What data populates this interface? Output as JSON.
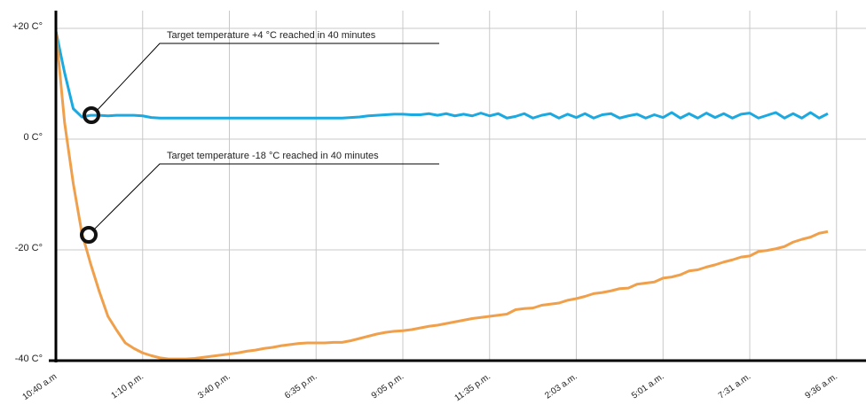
{
  "chart_data": {
    "type": "line",
    "annotations": [
      "Target temperature +4 °C reached in 40 minutes",
      "Target temperature -18 °C reached in 40 minutes"
    ],
    "categories": [
      "10:40 a.m",
      null,
      null,
      null,
      null,
      null,
      null,
      null,
      null,
      null,
      "1:10 p.m.",
      null,
      null,
      null,
      null,
      null,
      null,
      null,
      null,
      null,
      "3:40 p.m.",
      null,
      null,
      null,
      null,
      null,
      null,
      null,
      null,
      null,
      "6:35 p.m.",
      null,
      null,
      null,
      null,
      null,
      null,
      null,
      null,
      null,
      "9:05 p.m.",
      null,
      null,
      null,
      null,
      null,
      null,
      null,
      null,
      null,
      "11:35 p.m.",
      null,
      null,
      null,
      null,
      null,
      null,
      null,
      null,
      null,
      "2:03 a.m.",
      null,
      null,
      null,
      null,
      null,
      null,
      null,
      null,
      null,
      "5:01 a.m.",
      null,
      null,
      null,
      null,
      null,
      null,
      null,
      null,
      null,
      "7:31 a.m.",
      null,
      null,
      null,
      null,
      null,
      null,
      null,
      null,
      null,
      "9:36 a.m."
    ],
    "series": [
      {
        "color": "#1aa9e0",
        "values": [
          19.5,
          12,
          5.5,
          4,
          4.3,
          4.3,
          4.2,
          4.3,
          4.3,
          4.3,
          4.2,
          3.9,
          3.8,
          3.8,
          3.8,
          3.8,
          3.8,
          3.8,
          3.8,
          3.8,
          3.8,
          3.8,
          3.8,
          3.8,
          3.8,
          3.8,
          3.8,
          3.8,
          3.8,
          3.8,
          3.8,
          3.8,
          3.8,
          3.8,
          3.9,
          4.0,
          4.2,
          4.3,
          4.4,
          4.5,
          4.5,
          4.4,
          4.4,
          4.6,
          4.3,
          4.6,
          4.2,
          4.5,
          4.2,
          4.7,
          4.2,
          4.6,
          3.8,
          4.1,
          4.6,
          3.8,
          4.3,
          4.6,
          3.8,
          4.5,
          3.9,
          4.6,
          3.8,
          4.4,
          4.6,
          3.8,
          4.2,
          4.5,
          3.8,
          4.4,
          3.9,
          4.8,
          3.8,
          4.6,
          3.8,
          4.7,
          3.9,
          4.6,
          3.8,
          4.5,
          4.7,
          3.8,
          4.3,
          4.8,
          3.8,
          4.6,
          3.8,
          4.8,
          3.8,
          4.6,
          null
        ]
      },
      {
        "color": "#f0a04b",
        "values": [
          19.5,
          3,
          -8,
          -17,
          -22.5,
          -27.5,
          -32,
          -34.5,
          -36.8,
          -37.8,
          -38.6,
          -39.1,
          -39.5,
          -39.7,
          -39.7,
          -39.7,
          -39.6,
          -39.4,
          -39.2,
          -39,
          -38.8,
          -38.6,
          -38.3,
          -38.1,
          -37.8,
          -37.6,
          -37.3,
          -37.1,
          -36.9,
          -36.8,
          -36.8,
          -36.8,
          -36.7,
          -36.7,
          -36.4,
          -36,
          -35.6,
          -35.2,
          -34.9,
          -34.7,
          -34.6,
          -34.4,
          -34.1,
          -33.8,
          -33.6,
          -33.3,
          -33,
          -32.7,
          -32.4,
          -32.2,
          -32,
          -31.8,
          -31.6,
          -30.8,
          -30.6,
          -30.5,
          -30,
          -29.8,
          -29.6,
          -29.1,
          -28.8,
          -28.4,
          -27.9,
          -27.7,
          -27.4,
          -27,
          -26.9,
          -26.2,
          -26,
          -25.8,
          -25.1,
          -24.9,
          -24.5,
          -23.8,
          -23.6,
          -23.1,
          -22.7,
          -22.2,
          -21.8,
          -21.3,
          -21.1,
          -20.3,
          -20.1,
          -19.8,
          -19.4,
          -18.6,
          -18.1,
          -17.7,
          -17,
          -16.7,
          null
        ]
      }
    ],
    "ylim": [
      -40,
      23
    ],
    "yticks": [
      {
        "value": -40,
        "label": "-40 C°"
      },
      {
        "value": -20,
        "label": "-20 C°"
      },
      {
        "value": 0,
        "label": "0 C°"
      },
      {
        "value": 20,
        "label": "+20 C°"
      }
    ],
    "grid": true
  }
}
